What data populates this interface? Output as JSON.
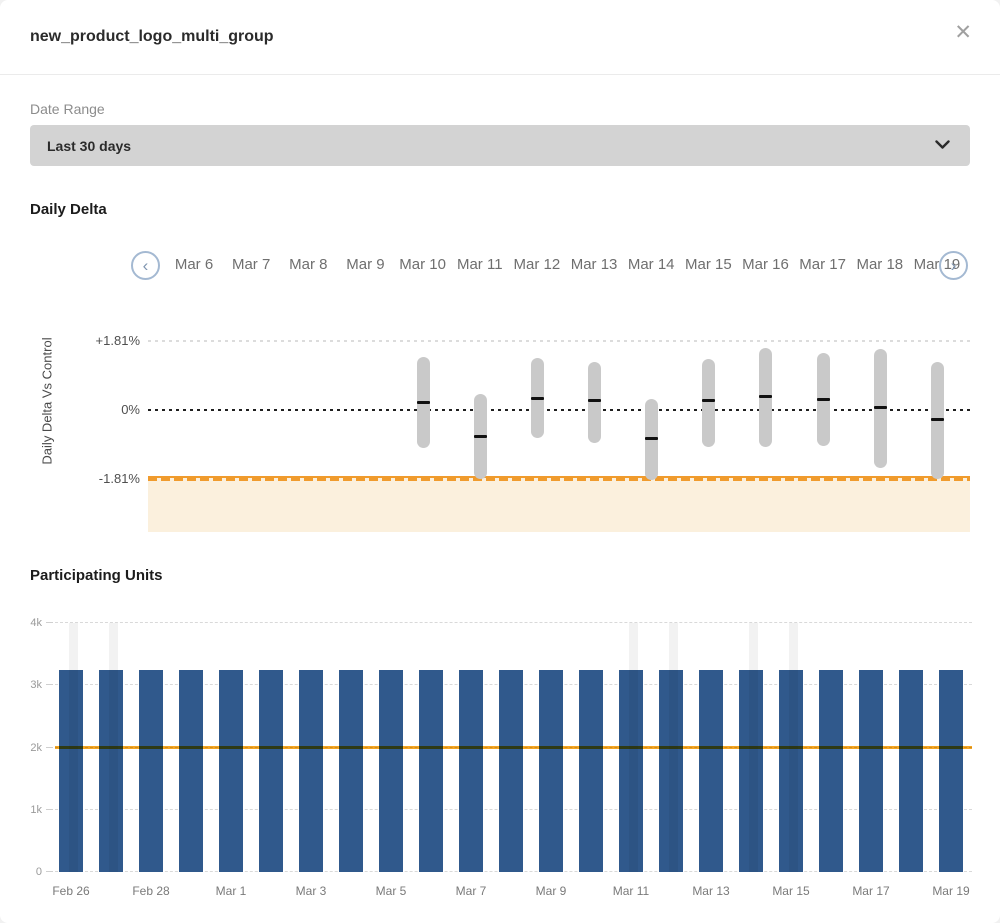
{
  "colors": {
    "bar_blue": "#30598c",
    "candle_gray": "#c9c9c9",
    "marker_black": "#111111",
    "accent_orange": "#f5a623",
    "threshold_orange": "#f09b2d",
    "threshold_fill": "#fbf0dd",
    "nav_circle_border": "#a4b9d2"
  },
  "header": {
    "title": "new_product_logo_multi_group",
    "close_icon": "✕"
  },
  "filters": {
    "date_range_label": "Date Range",
    "date_range_value": "Last 30 days"
  },
  "sections": {
    "daily_delta_title": "Daily Delta",
    "participating_units_title": "Participating Units"
  },
  "date_nav": {
    "prev_icon": "‹",
    "next_icon": "›",
    "dates": [
      "Mar 6",
      "Mar 7",
      "Mar 8",
      "Mar 9",
      "Mar 10",
      "Mar 11",
      "Mar 12",
      "Mar 13",
      "Mar 14",
      "Mar 15",
      "Mar 16",
      "Mar 17",
      "Mar 18",
      "Mar 19"
    ]
  },
  "chart_data": [
    {
      "type": "candlestick",
      "title": "Daily Delta",
      "ylabel": "Daily Delta Vs Control",
      "yticks": [
        {
          "label": "+1.81%",
          "value": 1.81
        },
        {
          "label": "0%",
          "value": 0
        },
        {
          "label": "-1.81%",
          "value": -1.81
        }
      ],
      "ylim": [
        -1.81,
        1.81
      ],
      "threshold_value": -1.81,
      "grid": "dotted",
      "legend": "none",
      "categories": [
        "Mar 10",
        "Mar 11",
        "Mar 12",
        "Mar 13",
        "Mar 14",
        "Mar 15",
        "Mar 16",
        "Mar 17",
        "Mar 18",
        "Mar 19"
      ],
      "points": [
        {
          "date": "Mar 10",
          "high": 1.4,
          "low": -1.0,
          "mean": 0.19
        },
        {
          "date": "Mar 11",
          "high": 0.42,
          "low": -1.82,
          "mean": -0.7
        },
        {
          "date": "Mar 12",
          "high": 1.36,
          "low": -0.74,
          "mean": 0.31
        },
        {
          "date": "Mar 13",
          "high": 1.27,
          "low": -0.87,
          "mean": 0.24
        },
        {
          "date": "Mar 14",
          "high": 0.29,
          "low": -1.84,
          "mean": -0.74
        },
        {
          "date": "Mar 15",
          "high": 1.33,
          "low": -0.96,
          "mean": 0.24
        },
        {
          "date": "Mar 16",
          "high": 1.62,
          "low": -0.96,
          "mean": 0.35
        },
        {
          "date": "Mar 17",
          "high": 1.5,
          "low": -0.94,
          "mean": 0.28
        },
        {
          "date": "Mar 18",
          "high": 1.59,
          "low": -1.51,
          "mean": 0.07
        },
        {
          "date": "Mar 19",
          "high": 1.27,
          "low": -1.82,
          "mean": -0.24
        }
      ]
    },
    {
      "type": "bar",
      "title": "Participating Units",
      "categories": [
        "Feb 26",
        "Feb 27",
        "Feb 28",
        "Feb 29",
        "Mar 1",
        "Mar 2",
        "Mar 3",
        "Mar 4",
        "Mar 5",
        "Mar 6",
        "Mar 7",
        "Mar 8",
        "Mar 9",
        "Mar 10",
        "Mar 11",
        "Mar 12",
        "Mar 13",
        "Mar 14",
        "Mar 15",
        "Mar 16",
        "Mar 17",
        "Mar 18",
        "Mar 19"
      ],
      "values": [
        3250,
        3250,
        3250,
        3250,
        3250,
        3250,
        3250,
        3250,
        3250,
        3250,
        3250,
        3250,
        3250,
        3250,
        3250,
        3250,
        3250,
        3250,
        3250,
        3250,
        3250,
        3250,
        3250
      ],
      "control_line_value": 2000,
      "yticks": [
        {
          "label": "0",
          "value": 0
        },
        {
          "label": "1k",
          "value": 1000
        },
        {
          "label": "2k",
          "value": 2000
        },
        {
          "label": "3k",
          "value": 3000
        },
        {
          "label": "4k",
          "value": 4000
        }
      ],
      "ylim": [
        0,
        4000
      ],
      "x_tick_labels": [
        "Feb 26",
        "Feb 28",
        "Mar 1",
        "Mar 3",
        "Mar 5",
        "Mar 7",
        "Mar 9",
        "Mar 11",
        "Mar 13",
        "Mar 15",
        "Mar 17",
        "Mar 19"
      ],
      "highlight_dates": [
        "Feb 26",
        "Feb 27",
        "Mar 11",
        "Mar 12",
        "Mar 14",
        "Mar 15"
      ],
      "highlight_indices": [
        0,
        1,
        14,
        15,
        17,
        18
      ],
      "grid": "dashed",
      "legend": "none"
    }
  ]
}
